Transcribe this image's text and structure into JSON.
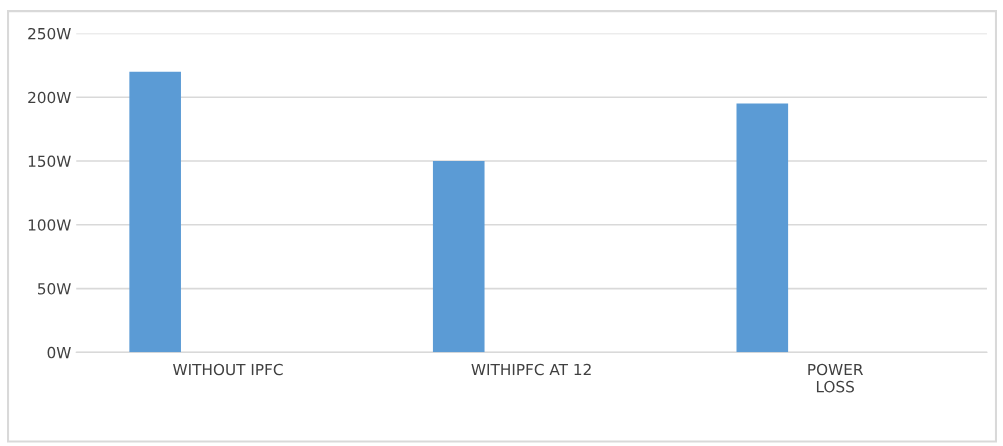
{
  "chart_data": {
    "type": "bar",
    "categories": [
      "WITHOUT IPFC",
      "WITHIPFC AT 12",
      "POWER\nLOSS"
    ],
    "values": [
      220,
      150,
      195
    ],
    "color": "#5b9bd5",
    "ylim": [
      0,
      250
    ],
    "yticks": [
      {
        "value": 0,
        "label": "0W"
      },
      {
        "value": 50,
        "label": "50W"
      },
      {
        "value": 100,
        "label": "100W"
      },
      {
        "value": 150,
        "label": "150W"
      },
      {
        "value": 200,
        "label": "200W"
      },
      {
        "value": 250,
        "label": "250W"
      }
    ],
    "grid": "y"
  }
}
